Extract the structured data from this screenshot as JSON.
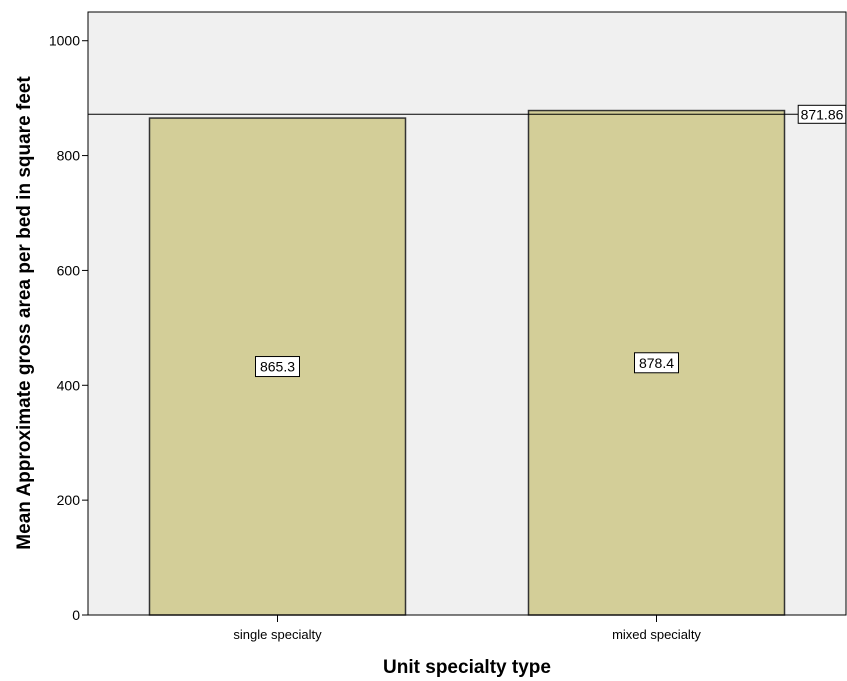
{
  "chart_data": {
    "type": "bar",
    "categories": [
      "single specialty",
      "mixed specialty"
    ],
    "values": [
      865.3,
      878.4
    ],
    "data_labels": [
      "865.3",
      "878.4"
    ],
    "reference_line": {
      "value": 871.86,
      "label": "871.86"
    },
    "xlabel": "Unit specialty type",
    "ylabel": "Mean Approximate gross area per bed in square feet",
    "ylim": [
      0,
      1050
    ],
    "yticks": [
      0,
      200,
      400,
      600,
      800,
      1000
    ],
    "ytick_labels": [
      "0",
      "200",
      "400",
      "600",
      "800",
      "1000"
    ],
    "grid": false,
    "legend": "none",
    "colors": {
      "plot_background": "#f0f0f0",
      "bar_fill": "#d3ce98",
      "bar_stroke": "#333333",
      "axis": "#000000"
    }
  }
}
